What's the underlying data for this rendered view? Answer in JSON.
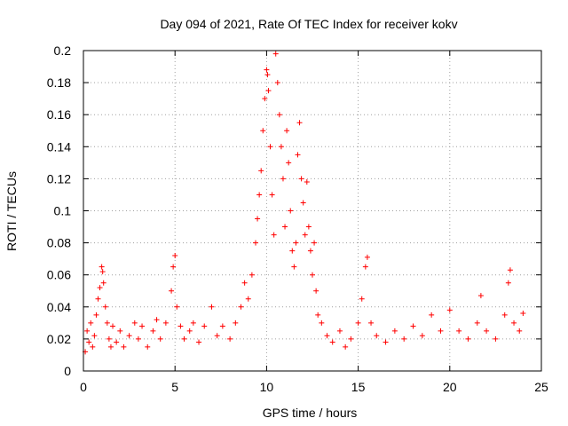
{
  "chart_data": {
    "type": "scatter",
    "title": "Day 094 of 2021, Rate Of TEC Index for receiver kokv",
    "xlabel": "GPS time / hours",
    "ylabel": "ROTI / TECUs",
    "xlim": [
      0,
      25
    ],
    "ylim": [
      0,
      0.2
    ],
    "x_ticks": [
      0,
      5,
      10,
      15,
      20,
      25
    ],
    "x_tick_labels": [
      "0",
      "5",
      "10",
      "15",
      "20",
      "25"
    ],
    "y_ticks": [
      0,
      0.02,
      0.04,
      0.06,
      0.08,
      0.1,
      0.12,
      0.14,
      0.16,
      0.18,
      0.2
    ],
    "y_tick_labels": [
      "0",
      "0.02",
      "0.04",
      "0.06",
      "0.08",
      "0.1",
      "0.12",
      "0.14",
      "0.16",
      "0.18",
      "0.2"
    ],
    "grid": true,
    "marker": "plus",
    "color": "#ff0000",
    "points": [
      [
        0.1,
        0.012
      ],
      [
        0.2,
        0.025
      ],
      [
        0.3,
        0.018
      ],
      [
        0.4,
        0.03
      ],
      [
        0.5,
        0.015
      ],
      [
        0.6,
        0.022
      ],
      [
        0.7,
        0.035
      ],
      [
        0.8,
        0.045
      ],
      [
        0.9,
        0.052
      ],
      [
        1.0,
        0.065
      ],
      [
        1.05,
        0.062
      ],
      [
        1.1,
        0.055
      ],
      [
        1.2,
        0.04
      ],
      [
        1.3,
        0.03
      ],
      [
        1.4,
        0.02
      ],
      [
        1.5,
        0.015
      ],
      [
        1.6,
        0.028
      ],
      [
        1.8,
        0.018
      ],
      [
        2.0,
        0.025
      ],
      [
        2.2,
        0.015
      ],
      [
        2.5,
        0.022
      ],
      [
        2.8,
        0.03
      ],
      [
        3.0,
        0.02
      ],
      [
        3.2,
        0.028
      ],
      [
        3.5,
        0.015
      ],
      [
        3.8,
        0.025
      ],
      [
        4.0,
        0.032
      ],
      [
        4.2,
        0.02
      ],
      [
        4.5,
        0.03
      ],
      [
        4.8,
        0.05
      ],
      [
        4.9,
        0.065
      ],
      [
        5.0,
        0.072
      ],
      [
        5.1,
        0.04
      ],
      [
        5.3,
        0.028
      ],
      [
        5.5,
        0.02
      ],
      [
        5.8,
        0.025
      ],
      [
        6.0,
        0.03
      ],
      [
        6.3,
        0.018
      ],
      [
        6.6,
        0.028
      ],
      [
        7.0,
        0.04
      ],
      [
        7.3,
        0.022
      ],
      [
        7.6,
        0.028
      ],
      [
        8.0,
        0.02
      ],
      [
        8.3,
        0.03
      ],
      [
        8.6,
        0.04
      ],
      [
        8.8,
        0.055
      ],
      [
        9.0,
        0.045
      ],
      [
        9.2,
        0.06
      ],
      [
        9.4,
        0.08
      ],
      [
        9.5,
        0.095
      ],
      [
        9.6,
        0.11
      ],
      [
        9.7,
        0.125
      ],
      [
        9.8,
        0.15
      ],
      [
        9.9,
        0.17
      ],
      [
        10.0,
        0.188
      ],
      [
        10.05,
        0.185
      ],
      [
        10.1,
        0.175
      ],
      [
        10.2,
        0.14
      ],
      [
        10.3,
        0.11
      ],
      [
        10.4,
        0.085
      ],
      [
        10.5,
        0.198
      ],
      [
        10.6,
        0.18
      ],
      [
        10.7,
        0.16
      ],
      [
        10.8,
        0.14
      ],
      [
        10.9,
        0.12
      ],
      [
        11.0,
        0.09
      ],
      [
        11.1,
        0.15
      ],
      [
        11.2,
        0.13
      ],
      [
        11.3,
        0.1
      ],
      [
        11.4,
        0.075
      ],
      [
        11.5,
        0.065
      ],
      [
        11.6,
        0.08
      ],
      [
        11.7,
        0.135
      ],
      [
        11.8,
        0.155
      ],
      [
        11.9,
        0.12
      ],
      [
        12.0,
        0.105
      ],
      [
        12.1,
        0.085
      ],
      [
        12.2,
        0.118
      ],
      [
        12.3,
        0.09
      ],
      [
        12.4,
        0.075
      ],
      [
        12.5,
        0.06
      ],
      [
        12.6,
        0.08
      ],
      [
        12.7,
        0.05
      ],
      [
        12.8,
        0.035
      ],
      [
        13.0,
        0.03
      ],
      [
        13.3,
        0.022
      ],
      [
        13.6,
        0.018
      ],
      [
        14.0,
        0.025
      ],
      [
        14.3,
        0.015
      ],
      [
        14.6,
        0.02
      ],
      [
        15.0,
        0.03
      ],
      [
        15.2,
        0.045
      ],
      [
        15.4,
        0.065
      ],
      [
        15.5,
        0.071
      ],
      [
        15.7,
        0.03
      ],
      [
        16.0,
        0.022
      ],
      [
        16.5,
        0.018
      ],
      [
        17.0,
        0.025
      ],
      [
        17.5,
        0.02
      ],
      [
        18.0,
        0.028
      ],
      [
        18.5,
        0.022
      ],
      [
        19.0,
        0.035
      ],
      [
        19.5,
        0.025
      ],
      [
        20.0,
        0.038
      ],
      [
        20.5,
        0.025
      ],
      [
        21.0,
        0.02
      ],
      [
        21.5,
        0.03
      ],
      [
        21.7,
        0.047
      ],
      [
        22.0,
        0.025
      ],
      [
        22.5,
        0.02
      ],
      [
        23.0,
        0.035
      ],
      [
        23.2,
        0.055
      ],
      [
        23.3,
        0.063
      ],
      [
        23.5,
        0.03
      ],
      [
        23.8,
        0.025
      ],
      [
        24.0,
        0.036
      ]
    ]
  }
}
